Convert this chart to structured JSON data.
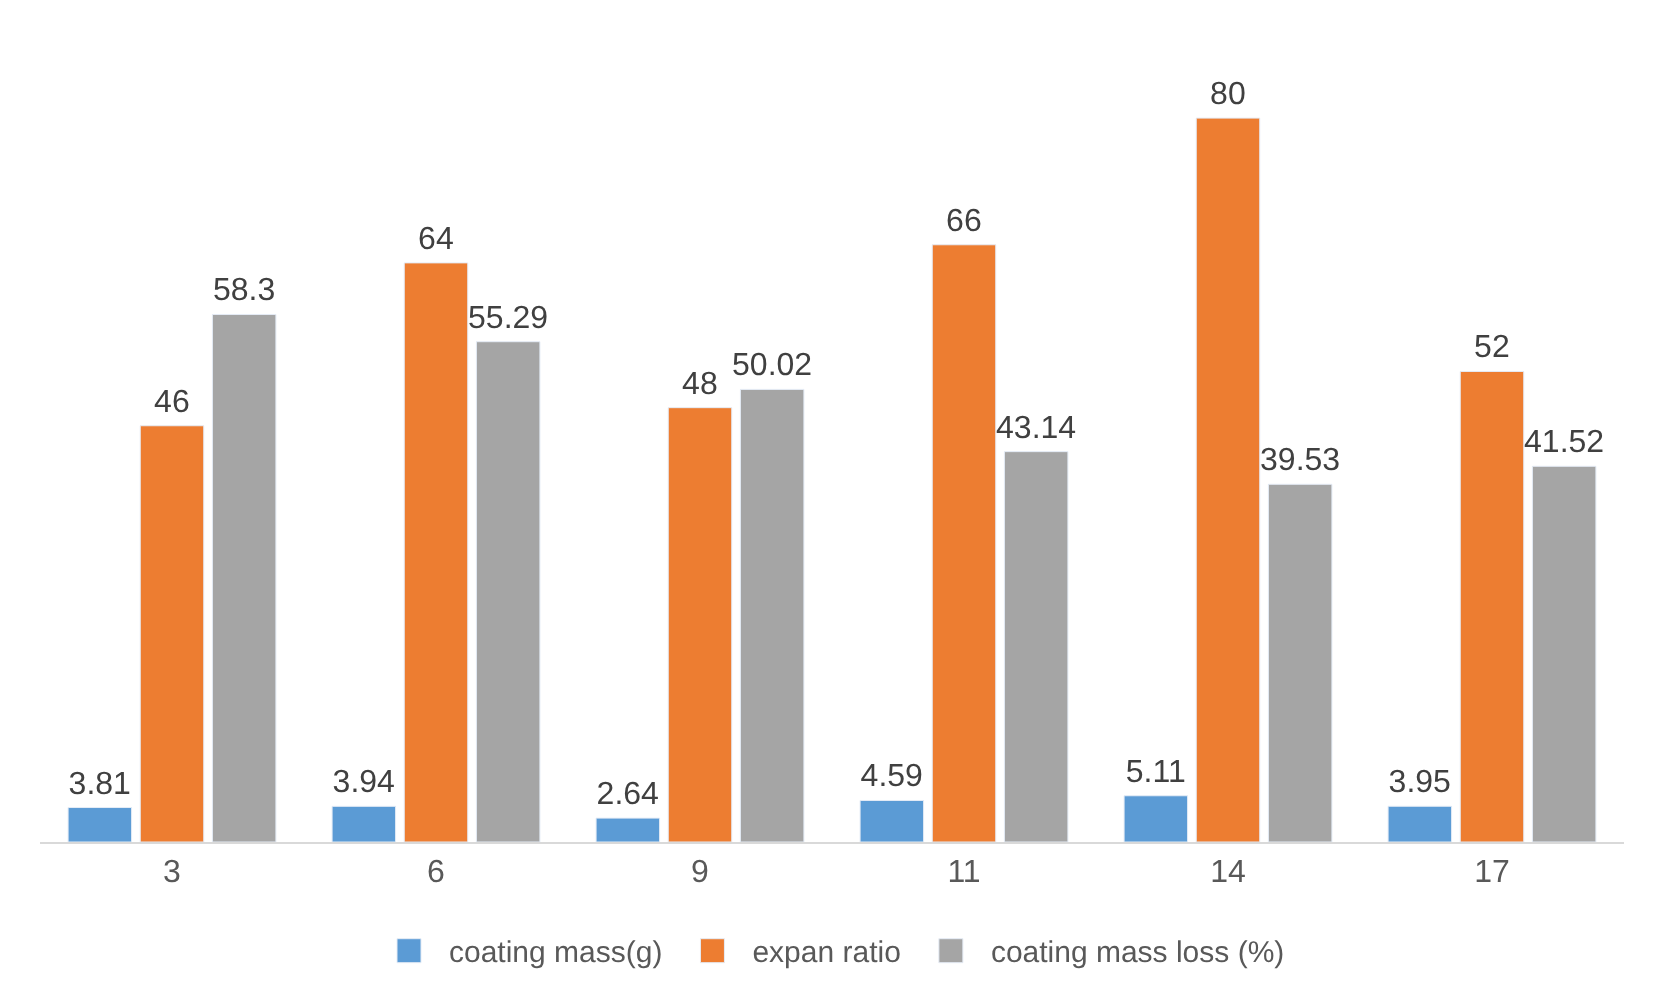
{
  "chart_data": {
    "type": "bar",
    "categories": [
      "3",
      "6",
      "9",
      "11",
      "14",
      "17"
    ],
    "series": [
      {
        "name": "coating mass(g)",
        "color": "#5b9bd5",
        "values": [
          3.81,
          3.94,
          2.64,
          4.59,
          5.11,
          3.95
        ]
      },
      {
        "name": "expan ratio",
        "color": "#ed7d31",
        "values": [
          46,
          64,
          48,
          66,
          80,
          52
        ]
      },
      {
        "name": "coating mass loss (%)",
        "color": "#a5a5a5",
        "values": [
          58.3,
          55.29,
          50.02,
          43.14,
          39.53,
          41.52
        ]
      }
    ],
    "data_labels": true,
    "legend": "bottom"
  }
}
